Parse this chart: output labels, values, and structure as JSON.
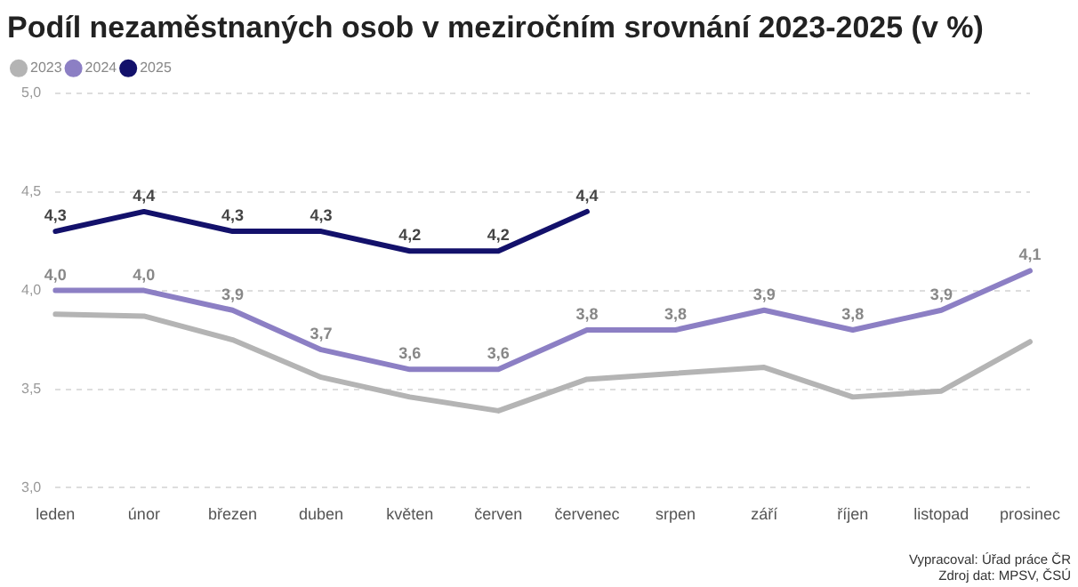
{
  "chart_data": {
    "type": "line",
    "title": "Podíl nezaměstnaných osob v meziročním srovnání 2023-2025 (v %)",
    "categories": [
      "leden",
      "únor",
      "březen",
      "duben",
      "květen",
      "červen",
      "červenec",
      "srpen",
      "září",
      "říjen",
      "listopad",
      "prosinec"
    ],
    "series": [
      {
        "name": "2023",
        "color": "#b4b4b4",
        "values": [
          3.88,
          3.87,
          3.75,
          3.56,
          3.46,
          3.39,
          3.55,
          3.58,
          3.61,
          3.46,
          3.49,
          3.74
        ]
      },
      {
        "name": "2024",
        "color": "#8c7fc4",
        "values": [
          4.0,
          4.0,
          3.9,
          3.7,
          3.6,
          3.6,
          3.8,
          3.8,
          3.9,
          3.8,
          3.9,
          4.1
        ],
        "value_labels": [
          "4,0",
          "4,0",
          "3,9",
          "3,7",
          "3,6",
          "3,6",
          "3,8",
          "3,8",
          "3,9",
          "3,8",
          "3,9",
          "4,1"
        ]
      },
      {
        "name": "2025",
        "color": "#13116b",
        "values": [
          4.3,
          4.4,
          4.3,
          4.3,
          4.2,
          4.2,
          4.4,
          null,
          null,
          null,
          null,
          null
        ],
        "value_labels": [
          "4,3",
          "4,4",
          "4,3",
          "4,3",
          "4,2",
          "4,2",
          "4,4",
          null,
          null,
          null,
          null,
          null
        ]
      }
    ],
    "ylim": [
      3.0,
      5.0
    ],
    "yticks": [
      {
        "value": 3.0,
        "label": "3,0"
      },
      {
        "value": 3.5,
        "label": "3,5"
      },
      {
        "value": 4.0,
        "label": "4,0"
      },
      {
        "value": 4.5,
        "label": "4,5"
      },
      {
        "value": 5.0,
        "label": "5,0"
      }
    ],
    "grid": "y",
    "legend": "top left",
    "marker": "none",
    "line_style": "solid",
    "annotations": [
      "Vypracoval: Úřad práce ČR",
      "Zdroj dat: MPSV, ČSÚ"
    ]
  }
}
